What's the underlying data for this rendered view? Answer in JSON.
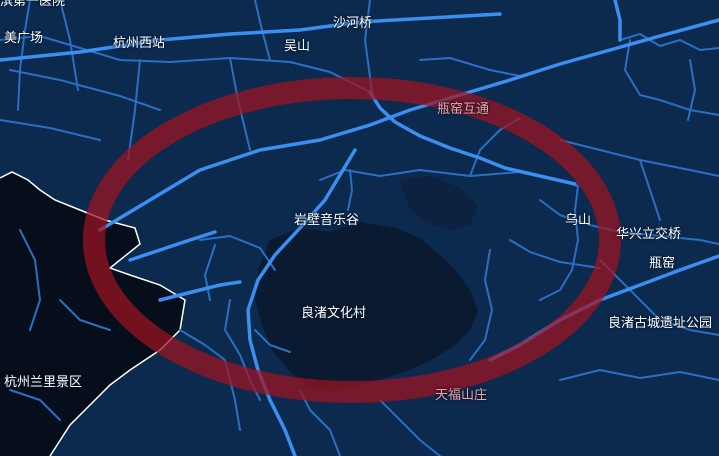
{
  "map": {
    "style": {
      "background": "#0b2a4e",
      "dark_zone": "#050e1a",
      "water": "#0a1a30",
      "road_major": "#3a8ff0",
      "road_minor": "#2a6fc4",
      "boundary": "#ffffff",
      "ring": "#a01420",
      "highlight_label": "#f2a0a4"
    },
    "labels": {
      "hospital_partial": "滨第一医院",
      "plaza_partial": "美广场",
      "hangzhou_west": "杭州西站",
      "shahe_bridge": "沙河桥",
      "wushan_north": "吴山",
      "pingyao_interchange": "瓶窑互通",
      "yanbi_music_valley": "岩壁音乐谷",
      "wushan_east": "乌山",
      "huaxing_interchange": "华兴立交桥",
      "pingyao": "瓶窑",
      "liangzhu_culture_village": "良渚文化村",
      "liangzhu_ruins_park": "良渚古城遗址公园",
      "hangzhou_lanli": "杭州兰里景区",
      "tianfu_shanzhuang": "天福山庄"
    }
  }
}
